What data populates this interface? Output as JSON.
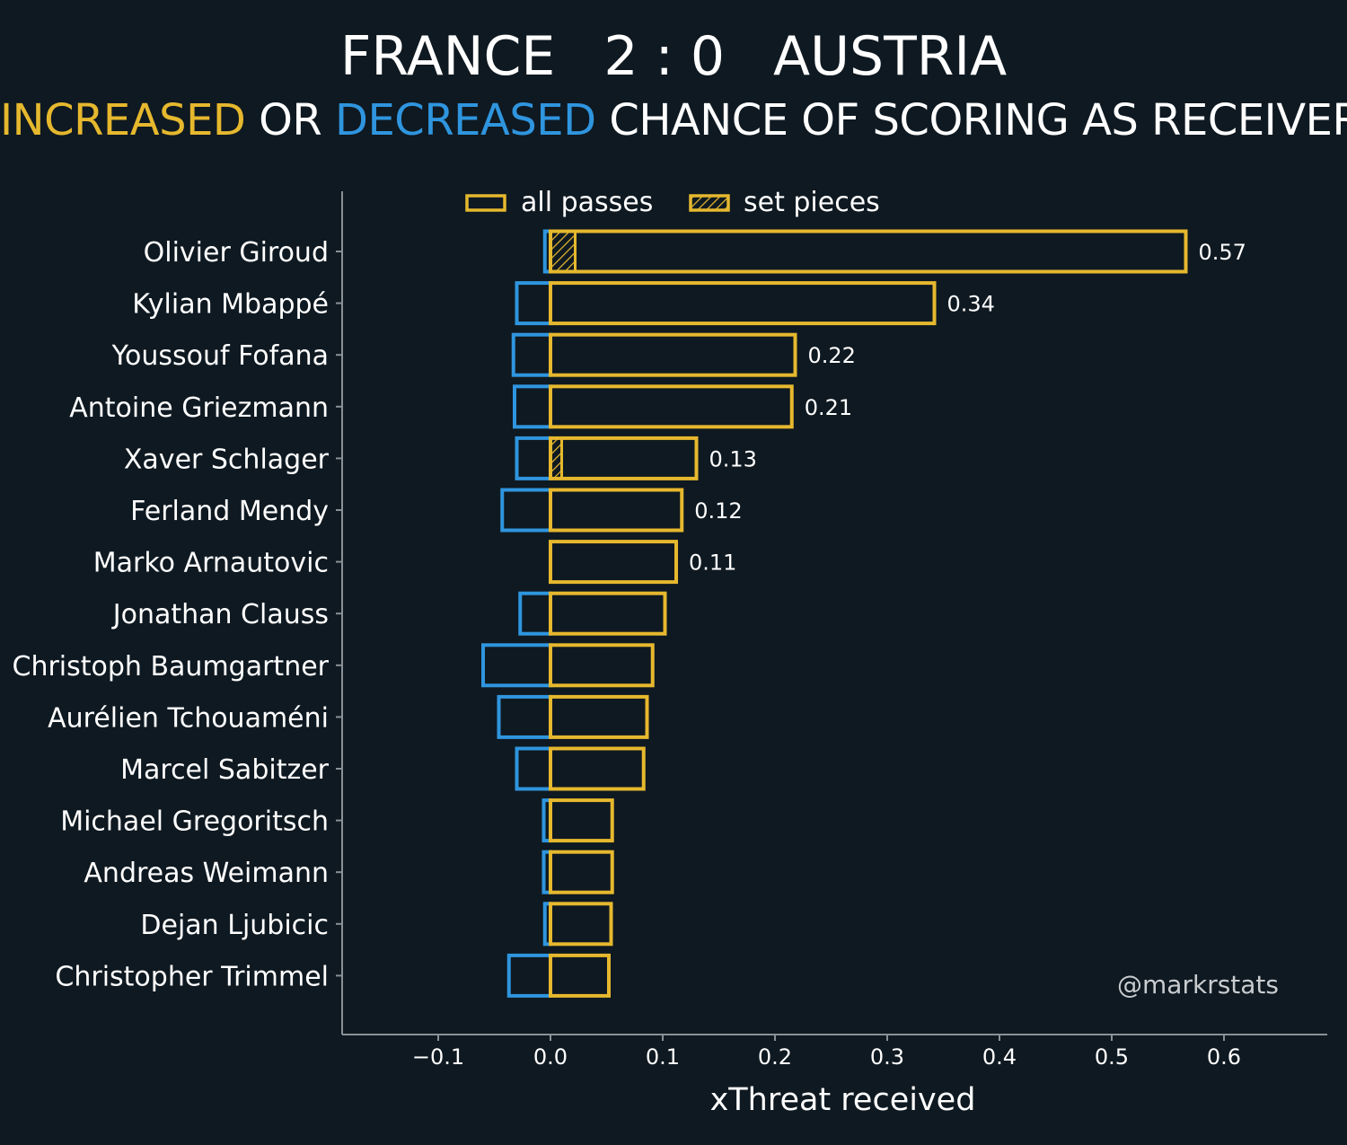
{
  "header": {
    "home_team": "FRANCE",
    "score": "2 : 0",
    "away_team": "AUSTRIA",
    "subtitle_increased": "INCREASED",
    "subtitle_or": " OR ",
    "subtitle_decreased": "DECREASED",
    "subtitle_rest": " CHANCE OF SCORING AS RECEIVER"
  },
  "colors": {
    "background": "#0f1921",
    "increased": "#e6b82e",
    "decreased": "#2f95de",
    "axis": "#8a9196",
    "text": "#ffffff"
  },
  "watermark": "@markrstats",
  "chart_data": {
    "type": "bar",
    "orientation": "horizontal",
    "xlabel": "xThreat received",
    "xlim": [
      -0.185,
      0.69
    ],
    "xticks": [
      -0.1,
      0.0,
      0.1,
      0.2,
      0.3,
      0.4,
      0.5,
      0.6
    ],
    "xtick_labels": [
      "−0.1",
      "0.0",
      "0.1",
      "0.2",
      "0.3",
      "0.4",
      "0.5",
      "0.6"
    ],
    "legend": {
      "position": "top",
      "entries": [
        {
          "label": "all passes",
          "style": "outline"
        },
        {
          "label": "set pieces",
          "style": "hatched"
        }
      ]
    },
    "categories": [
      "Olivier Giroud",
      "Kylian Mbappé",
      "Youssouf Fofana",
      "Antoine Griezmann",
      "Xaver Schlager",
      "Ferland Mendy",
      "Marko Arnautovic",
      "Jonathan Clauss",
      "Christoph Baumgartner",
      "Aurélien Tchouaméni",
      "Marcel Sabitzer",
      "Michael Gregoritsch",
      "Andreas Weimann",
      "Dejan Ljubicic",
      "Christopher Trimmel"
    ],
    "series": [
      {
        "name": "increased (all passes)",
        "values": [
          0.566,
          0.342,
          0.218,
          0.215,
          0.13,
          0.117,
          0.112,
          0.102,
          0.091,
          0.086,
          0.083,
          0.055,
          0.055,
          0.054,
          0.052
        ]
      },
      {
        "name": "decreased (all passes)",
        "values": [
          -0.005,
          -0.03,
          -0.033,
          -0.032,
          -0.03,
          -0.043,
          0.0,
          -0.027,
          -0.06,
          -0.046,
          -0.03,
          -0.006,
          -0.006,
          -0.005,
          -0.037
        ]
      },
      {
        "name": "set pieces",
        "values": [
          0.022,
          0,
          0,
          0,
          0.01,
          0,
          0,
          0,
          0,
          0,
          0,
          0,
          0,
          0,
          0
        ]
      }
    ],
    "value_labels": [
      "0.57",
      "0.34",
      "0.22",
      "0.21",
      "0.13",
      "0.12",
      "0.11",
      "",
      "",
      "",
      "",
      "",
      "",
      "",
      ""
    ]
  }
}
